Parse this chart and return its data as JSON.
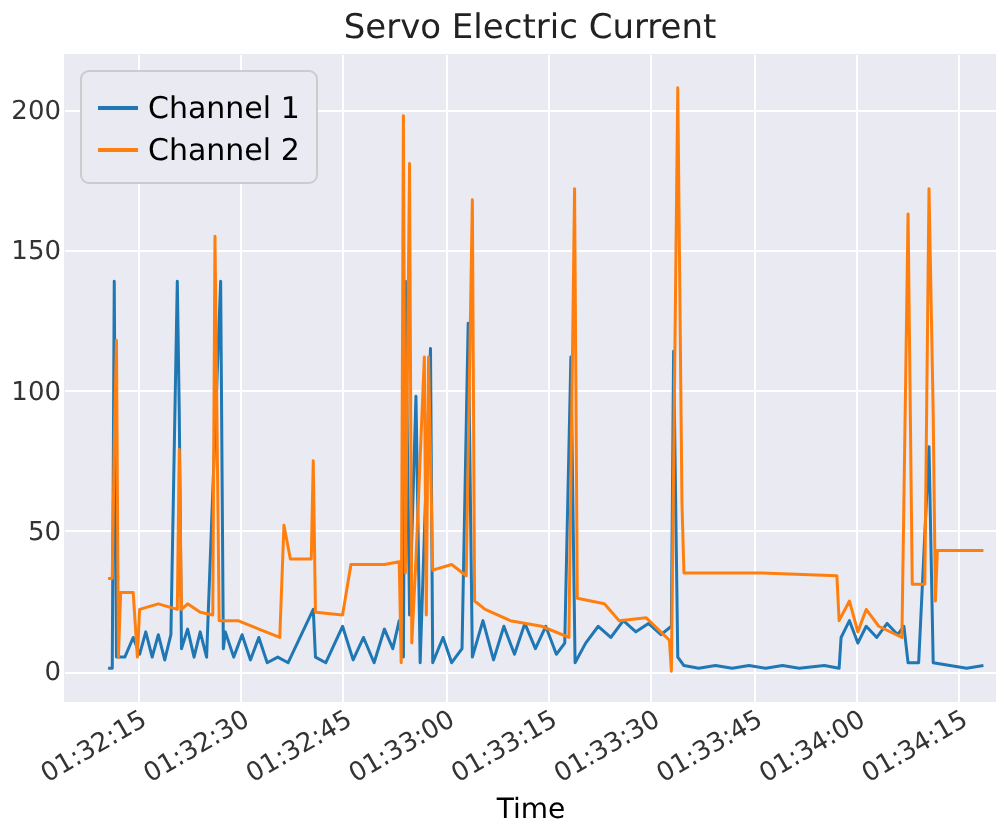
{
  "chart_data": {
    "type": "line",
    "title": "Servo Electric Current",
    "xlabel": "Time",
    "xlim": [
      1.53452,
      1.57236
    ],
    "ylim": [
      -11,
      220
    ],
    "xticks": [
      {
        "value": 1.5375,
        "label": "01:32:15"
      },
      {
        "value": 1.541667,
        "label": "01:32:30"
      },
      {
        "value": 1.545833,
        "label": "01:32:45"
      },
      {
        "value": 1.55,
        "label": "01:33:00"
      },
      {
        "value": 1.554167,
        "label": "01:33:15"
      },
      {
        "value": 1.558333,
        "label": "01:33:30"
      },
      {
        "value": 1.5625,
        "label": "01:33:45"
      },
      {
        "value": 1.566667,
        "label": "01:34:00"
      },
      {
        "value": 1.570833,
        "label": "01:34:15"
      }
    ],
    "yticks": [
      0,
      50,
      100,
      150,
      200
    ],
    "grid": true,
    "legend": "top left",
    "marker": "none",
    "line_style": "solid",
    "series": [
      {
        "name": "Channel 1",
        "color": "#1f77b4",
        "x": [
          1.53631,
          1.53648,
          1.53656,
          1.53665,
          1.53699,
          1.53733,
          1.53759,
          1.53784,
          1.5381,
          1.53835,
          1.53861,
          1.53886,
          1.53912,
          1.5392,
          1.53929,
          1.53954,
          1.5398,
          1.54005,
          1.54031,
          1.54088,
          1.54099,
          1.54107,
          1.54141,
          1.54175,
          1.54209,
          1.54243,
          1.54277,
          1.5432,
          1.54362,
          1.54464,
          1.54473,
          1.54515,
          1.54583,
          1.54626,
          1.54668,
          1.54711,
          1.54753,
          1.54787,
          1.54813,
          1.5483,
          1.54838,
          1.54855,
          1.54881,
          1.54898,
          1.5494,
          1.54949,
          1.54991,
          1.55026,
          1.55068,
          1.55093,
          1.5511,
          1.55153,
          1.55196,
          1.55238,
          1.55281,
          1.55323,
          1.55366,
          1.55408,
          1.55451,
          1.55485,
          1.5551,
          1.55527,
          1.5557,
          1.55621,
          1.55672,
          1.55723,
          1.55774,
          1.55825,
          1.55876,
          1.55918,
          1.55927,
          1.55944,
          1.55969,
          1.56029,
          1.56097,
          1.56165,
          1.56233,
          1.56301,
          1.56369,
          1.56437,
          1.56539,
          1.56599,
          1.56607,
          1.56641,
          1.56675,
          1.56709,
          1.56752,
          1.56794,
          1.56837,
          1.56862,
          1.56879,
          1.56922,
          1.56964,
          1.56981,
          1.57049,
          1.57117,
          1.57185
        ],
        "values": [
          1,
          1,
          139,
          5,
          5,
          12,
          6,
          14,
          5,
          13,
          4,
          13,
          139,
          92,
          8,
          15,
          5,
          14,
          5,
          139,
          8,
          14,
          5,
          13,
          4,
          12,
          3,
          5,
          3,
          22,
          5,
          3,
          16,
          4,
          12,
          3,
          15,
          8,
          18,
          5,
          139,
          20,
          98,
          3,
          115,
          3,
          12,
          3,
          8,
          124,
          5,
          18,
          4,
          16,
          6,
          17,
          8,
          16,
          6,
          10,
          112,
          3,
          10,
          16,
          12,
          18,
          14,
          17,
          13,
          16,
          114,
          5,
          2,
          1,
          2,
          1,
          2,
          1,
          2,
          1,
          2,
          1,
          12,
          18,
          10,
          16,
          12,
          17,
          13,
          16,
          3,
          3,
          80,
          3,
          2,
          1,
          2
        ]
      },
      {
        "name": "Channel 2",
        "color": "#ff7f0e",
        "x": [
          1.53631,
          1.53648,
          1.53656,
          1.53665,
          1.53673,
          1.53682,
          1.53733,
          1.5375,
          1.53759,
          1.53835,
          1.53912,
          1.5392,
          1.53929,
          1.53954,
          1.54005,
          1.54056,
          1.54065,
          1.54082,
          1.54158,
          1.54243,
          1.54328,
          1.54345,
          1.54371,
          1.54456,
          1.54464,
          1.54473,
          1.54583,
          1.54617,
          1.54753,
          1.54813,
          1.54821,
          1.5483,
          1.54838,
          1.54855,
          1.54864,
          1.54881,
          1.54915,
          1.54923,
          1.54932,
          1.54949,
          1.55026,
          1.55085,
          1.5511,
          1.55119,
          1.55162,
          1.55264,
          1.55391,
          1.55502,
          1.55525,
          1.55536,
          1.55646,
          1.55706,
          1.55816,
          1.5591,
          1.55918,
          1.55944,
          1.55961,
          1.55969,
          1.56284,
          1.5659,
          1.56599,
          1.56641,
          1.56675,
          1.56709,
          1.5676,
          1.56854,
          1.56879,
          1.56896,
          1.56947,
          1.56964,
          1.56981,
          1.5699,
          1.56998,
          1.57185
        ],
        "values": [
          33,
          33,
          80,
          118,
          5,
          28,
          28,
          5,
          22,
          24,
          22,
          79,
          22,
          24,
          21,
          20,
          155,
          18,
          18,
          15,
          12,
          52,
          40,
          40,
          75,
          21,
          20,
          38,
          38,
          39,
          3,
          198,
          35,
          181,
          10,
          40,
          112,
          20,
          112,
          36,
          38,
          34,
          168,
          25,
          22,
          18,
          16,
          12,
          172,
          26,
          24,
          18,
          19,
          11,
          0,
          208,
          60,
          35,
          35,
          34,
          18,
          25,
          14,
          22,
          16,
          12,
          163,
          31,
          31,
          172,
          92,
          25,
          43,
          43
        ]
      }
    ]
  }
}
